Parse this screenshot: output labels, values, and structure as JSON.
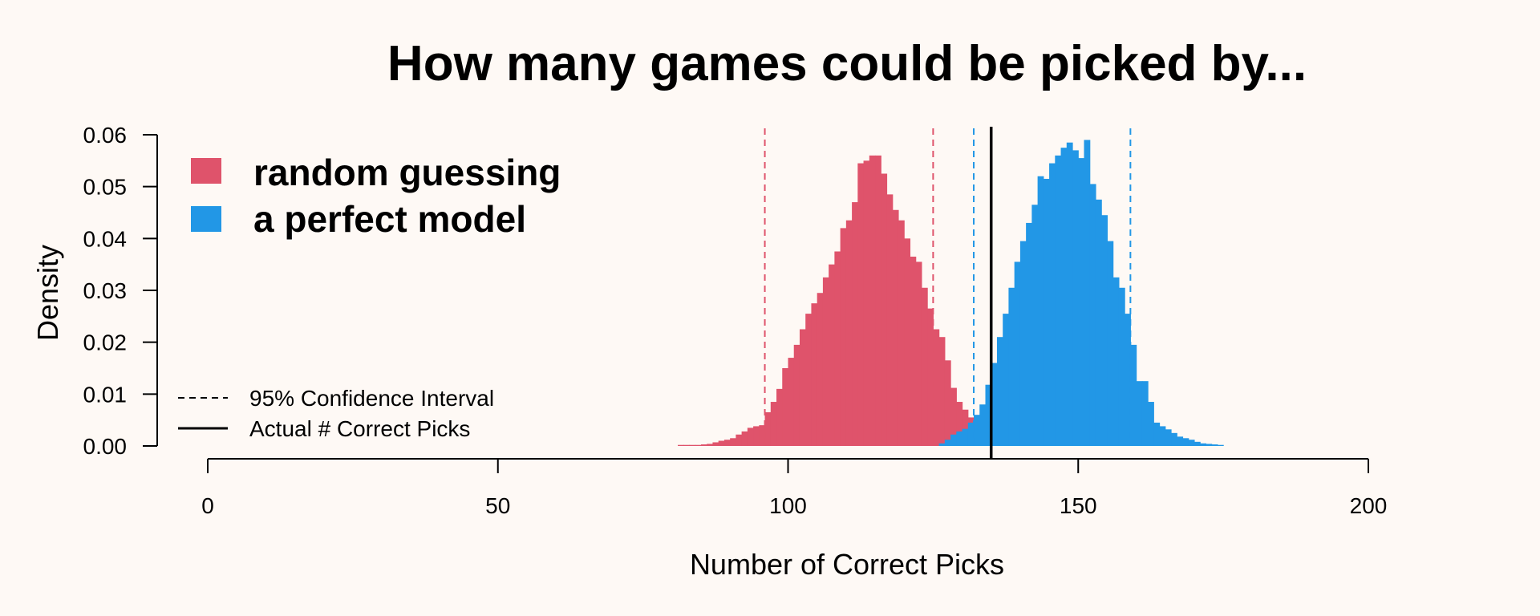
{
  "colors": {
    "background": "#FEF9F5",
    "random": "#DF536B",
    "perfect": "#2297E6",
    "actual": "#000000"
  },
  "chart_data": {
    "type": "histogram",
    "title": "How many games could be picked by...",
    "xlabel": "Number of Correct Picks",
    "ylabel": "Density",
    "xlim": [
      0,
      200
    ],
    "ylim": [
      0,
      0.06
    ],
    "x_ticks": [
      "0",
      "50",
      "100",
      "150",
      "200"
    ],
    "y_ticks": [
      "0.00",
      "0.01",
      "0.02",
      "0.03",
      "0.04",
      "0.05",
      "0.06"
    ],
    "grid": false,
    "bin_width": 1,
    "legend": {
      "placement": "top-left",
      "entries": [
        "random guessing",
        "a perfect model"
      ]
    },
    "line_legend": {
      "placement": "bottom-left",
      "entries": [
        "95% Confidence Interval",
        "Actual # Correct Picks"
      ]
    },
    "series": [
      {
        "name": "random guessing",
        "bin_start": 81,
        "values": [
          0.0002,
          0.0002,
          0.0002,
          0.0002,
          0.0003,
          0.0004,
          0.0007,
          0.001,
          0.0012,
          0.0015,
          0.0022,
          0.0028,
          0.0035,
          0.0038,
          0.004,
          0.0065,
          0.0085,
          0.011,
          0.015,
          0.017,
          0.0195,
          0.0225,
          0.0255,
          0.0275,
          0.0295,
          0.0325,
          0.035,
          0.0375,
          0.042,
          0.0435,
          0.047,
          0.0545,
          0.055,
          0.056,
          0.056,
          0.0525,
          0.0485,
          0.0455,
          0.0435,
          0.04,
          0.0365,
          0.0355,
          0.0305,
          0.0265,
          0.0225,
          0.021,
          0.0165,
          0.0112,
          0.0085,
          0.007,
          0.0055,
          0.0045,
          0.0038,
          0.0032,
          0.003,
          0.0025,
          0.002,
          0.0015,
          0.001,
          0.0008,
          0.0005,
          0.0003,
          0.0002
        ],
        "ci": [
          96,
          125
        ]
      },
      {
        "name": "a perfect model",
        "bin_start": 126,
        "values": [
          0.0005,
          0.0012,
          0.0022,
          0.0028,
          0.0033,
          0.0045,
          0.006,
          0.008,
          0.0118,
          0.016,
          0.021,
          0.0255,
          0.0305,
          0.0355,
          0.0395,
          0.043,
          0.0465,
          0.052,
          0.0515,
          0.0545,
          0.056,
          0.0575,
          0.0585,
          0.057,
          0.0555,
          0.059,
          0.0505,
          0.0475,
          0.0445,
          0.0395,
          0.0325,
          0.0305,
          0.0255,
          0.0195,
          0.0125,
          0.0125,
          0.0085,
          0.0045,
          0.0038,
          0.0032,
          0.0025,
          0.0018,
          0.0015,
          0.0012,
          0.0008,
          0.0005,
          0.0004,
          0.0003,
          0.0002
        ],
        "ci": [
          132,
          159
        ]
      }
    ],
    "actual_correct_picks": 135
  }
}
